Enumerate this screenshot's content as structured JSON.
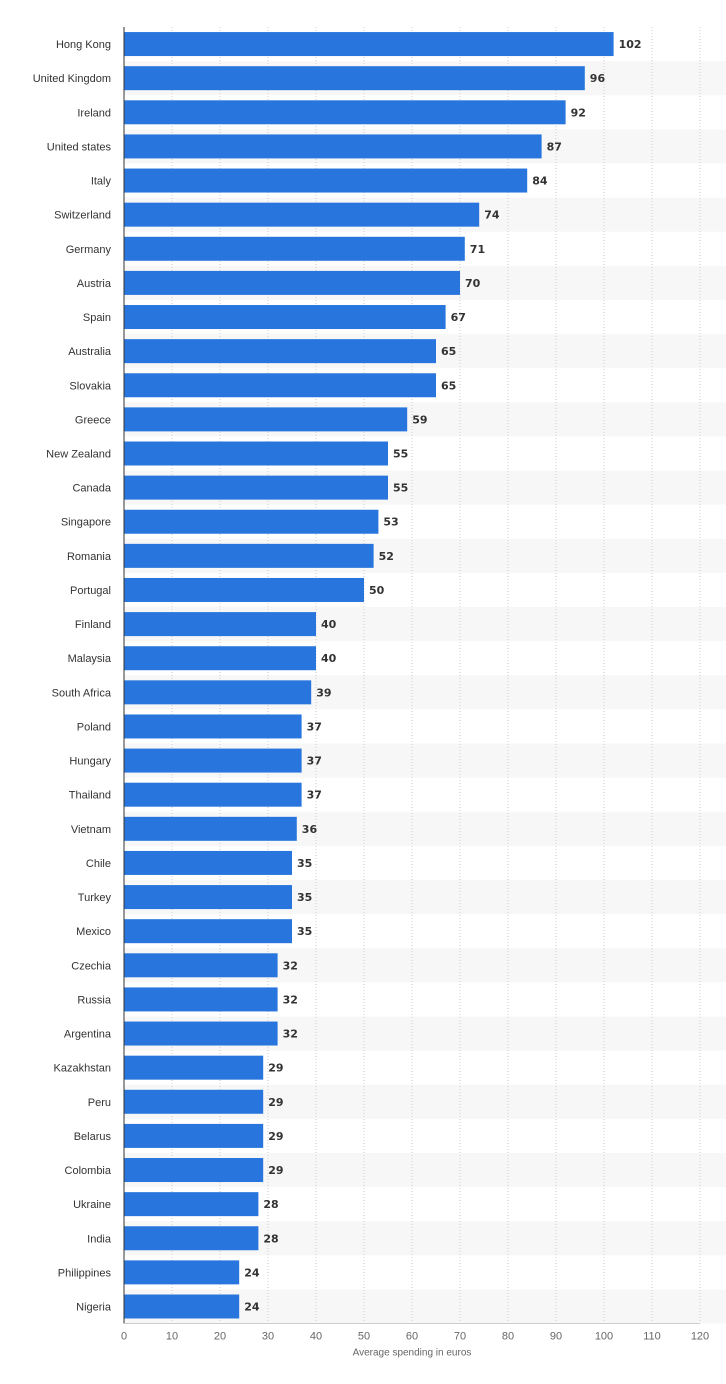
{
  "chart_data": {
    "type": "bar",
    "orientation": "horizontal",
    "categories": [
      "Hong Kong",
      "United Kingdom",
      "Ireland",
      "United states",
      "Italy",
      "Switzerland",
      "Germany",
      "Austria",
      "Spain",
      "Australia",
      "Slovakia",
      "Greece",
      "New Zealand",
      "Canada",
      "Singapore",
      "Romania",
      "Portugal",
      "Finland",
      "Malaysia",
      "South Africa",
      "Poland",
      "Hungary",
      "Thailand",
      "Vietnam",
      "Chile",
      "Turkey",
      "Mexico",
      "Czechia",
      "Russia",
      "Argentina",
      "Kazakhstan",
      "Peru",
      "Belarus",
      "Colombia",
      "Ukraine",
      "India",
      "Philippines",
      "Nigeria"
    ],
    "values": [
      102,
      96,
      92,
      87,
      84,
      74,
      71,
      70,
      67,
      65,
      65,
      59,
      55,
      55,
      53,
      52,
      50,
      40,
      40,
      39,
      37,
      37,
      37,
      36,
      35,
      35,
      35,
      32,
      32,
      32,
      29,
      29,
      29,
      29,
      28,
      28,
      24,
      24
    ],
    "xlabel": "Average spending in euros",
    "ylabel": "",
    "xlim": [
      0,
      120
    ],
    "xticks": [
      0,
      10,
      20,
      30,
      40,
      50,
      60,
      70,
      80,
      90,
      100,
      110,
      120
    ],
    "grid": true,
    "data_labels": true,
    "colors": {
      "bar": "#2876dd",
      "band": "#f7f7f7",
      "grid": "#cccccc",
      "axis": "#333333",
      "label": "#333333",
      "tick": "#666666"
    }
  }
}
